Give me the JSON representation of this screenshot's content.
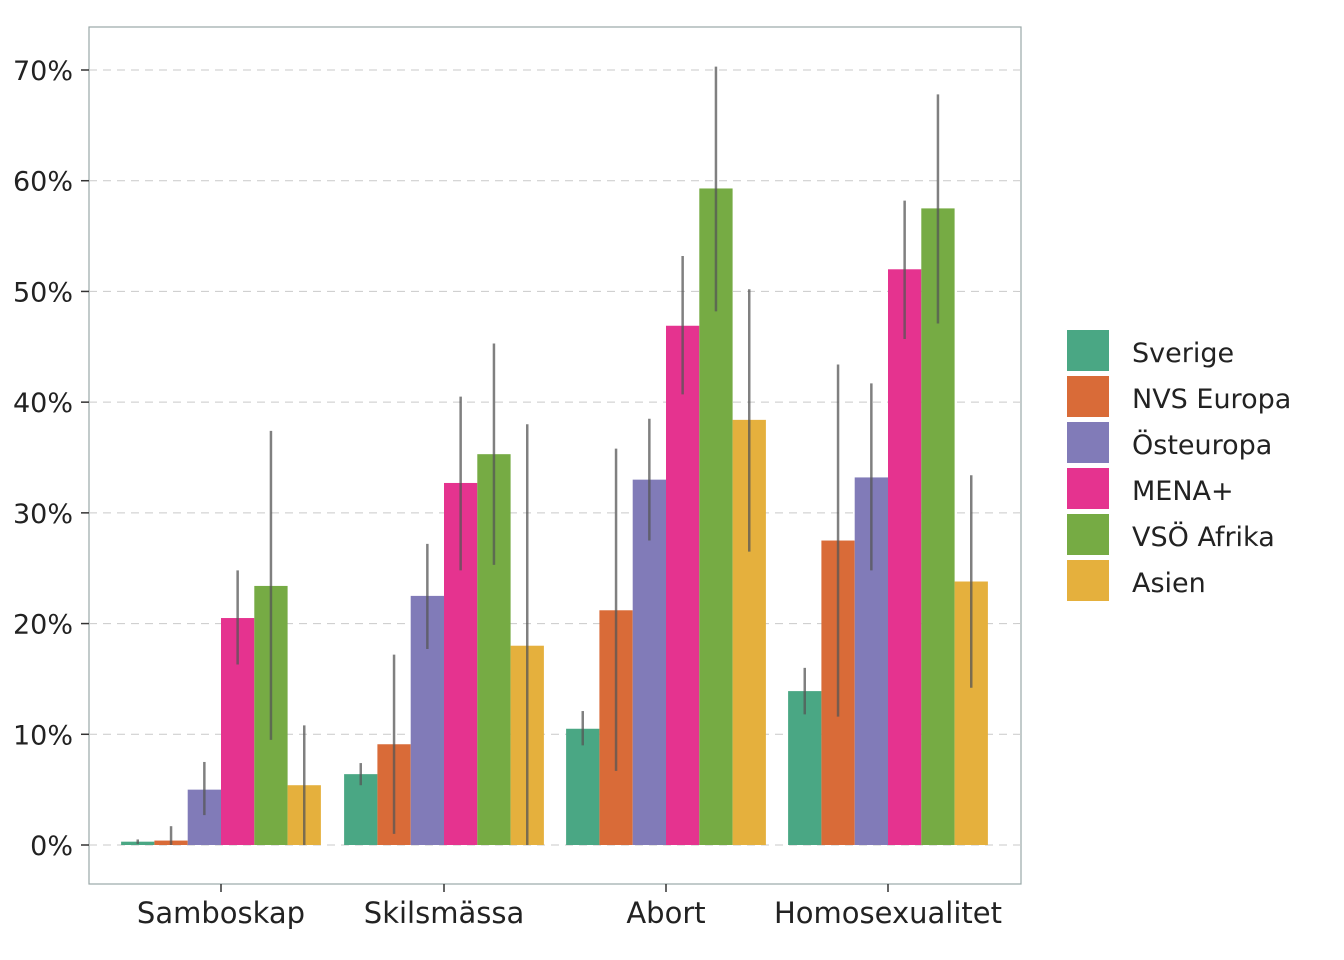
{
  "chart_data": {
    "type": "bar",
    "title": "",
    "xlabel": "",
    "ylabel": "",
    "ylim": [
      -3.5,
      74
    ],
    "y_ticks": [
      0,
      10,
      20,
      30,
      40,
      50,
      60,
      70
    ],
    "y_tick_labels": [
      "0%",
      "10%",
      "20%",
      "30%",
      "40%",
      "50%",
      "60%",
      "70%"
    ],
    "grid": "horizontal dashed",
    "legend_position": "right",
    "categories": [
      "Samboskap",
      "Skilsmässa",
      "Abort",
      "Homosexualitet"
    ],
    "series": [
      {
        "name": "Sverige",
        "color": "#4aa784",
        "values": [
          0.3,
          6.4,
          10.5,
          13.9
        ],
        "err_low": [
          0.1,
          5.4,
          9.0,
          11.8
        ],
        "err_high": [
          0.5,
          7.4,
          12.1,
          16.0
        ]
      },
      {
        "name": "NVS Europa",
        "color": "#d96b38",
        "values": [
          0.4,
          9.1,
          21.2,
          27.5
        ],
        "err_low": [
          0.0,
          1.0,
          6.7,
          11.6
        ],
        "err_high": [
          1.7,
          17.2,
          35.8,
          43.4
        ]
      },
      {
        "name": "Östeuropa",
        "color": "#817bb8",
        "values": [
          5.0,
          22.5,
          33.0,
          33.2
        ],
        "err_low": [
          2.7,
          17.7,
          27.5,
          24.8
        ],
        "err_high": [
          7.5,
          27.2,
          38.5,
          41.7
        ]
      },
      {
        "name": "MENA+",
        "color": "#e5338f",
        "values": [
          20.5,
          32.7,
          46.9,
          52.0
        ],
        "err_low": [
          16.3,
          24.8,
          40.7,
          45.7
        ],
        "err_high": [
          24.8,
          40.5,
          53.2,
          58.2
        ]
      },
      {
        "name": "VSÖ Afrika",
        "color": "#76ab44",
        "values": [
          23.4,
          35.3,
          59.3,
          57.5
        ],
        "err_low": [
          9.5,
          25.3,
          48.2,
          47.1
        ],
        "err_high": [
          37.4,
          45.3,
          70.3,
          67.8
        ]
      },
      {
        "name": "Asien",
        "color": "#e5b03d",
        "values": [
          5.4,
          18.0,
          38.4,
          23.8
        ],
        "err_low": [
          0.0,
          0.0,
          26.5,
          14.2
        ],
        "err_high": [
          10.8,
          38.0,
          50.2,
          33.4
        ]
      }
    ]
  }
}
